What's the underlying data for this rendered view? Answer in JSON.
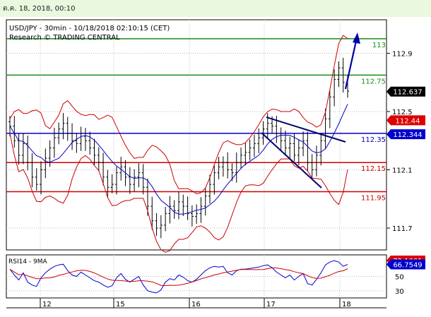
{
  "header": {
    "date_time": "ต.ค. 18, 2018, 00:10"
  },
  "chart_info": {
    "line1": "USD/JPY - 30min - 10/18/2018 02:10:15 (CET)",
    "line2": "Research © TRADING CENTRAL"
  },
  "chart_data": [
    {
      "type": "candlestick",
      "title": "USD/JPY - 30min - 10/18/2018 02:10:15 (CET)",
      "xlabel": "",
      "ylabel": "",
      "x_ticks": [
        "12",
        "15",
        "16",
        "17",
        "18"
      ],
      "y_ticks": [
        112.9,
        112.5,
        112.1,
        111.7
      ],
      "y_tick_labels": [
        "112.9",
        "112.5",
        "112.1",
        "111.7"
      ],
      "ylim": [
        111.55,
        113.13
      ],
      "grid": true,
      "horizontal_levels": [
        {
          "label": "113",
          "value": 113.0,
          "color": "#1a8a1a"
        },
        {
          "label": "112.75",
          "value": 112.75,
          "color": "#1a8a1a"
        },
        {
          "label": "112.35",
          "value": 112.35,
          "color": "#0000cc"
        },
        {
          "label": "112.15",
          "value": 112.15,
          "color": "#cc0000"
        },
        {
          "label": "111.95",
          "value": 111.95,
          "color": "#cc0000"
        }
      ],
      "price_tags": [
        {
          "label": "112.637",
          "value": 112.637,
          "bg": "#000000",
          "fg": "#ffffff"
        },
        {
          "label": "112.44",
          "value": 112.44,
          "bg": "#dd0000",
          "fg": "#ffffff"
        },
        {
          "label": "112.344",
          "value": 112.344,
          "bg": "#0000cc",
          "fg": "#ffffff"
        }
      ],
      "close_series": [
        112.4,
        112.3,
        112.2,
        112.28,
        112.15,
        112.05,
        112.0,
        112.1,
        112.18,
        112.25,
        112.32,
        112.38,
        112.42,
        112.35,
        112.3,
        112.28,
        112.33,
        112.3,
        112.25,
        112.2,
        112.15,
        112.05,
        111.98,
        112.0,
        112.08,
        112.12,
        112.05,
        112.0,
        112.05,
        112.08,
        111.98,
        111.85,
        111.75,
        111.7,
        111.72,
        111.8,
        111.85,
        111.82,
        111.88,
        111.85,
        111.8,
        111.78,
        111.8,
        111.85,
        111.92,
        112.0,
        112.08,
        112.12,
        112.15,
        112.1,
        112.08,
        112.15,
        112.2,
        112.22,
        112.25,
        112.28,
        112.32,
        112.38,
        112.42,
        112.4,
        112.35,
        112.3,
        112.25,
        112.28,
        112.2,
        112.25,
        112.3,
        112.15,
        112.1,
        112.2,
        112.3,
        112.45,
        112.6,
        112.72,
        112.8,
        112.7,
        112.64
      ],
      "series": [
        {
          "name": "",
          "color": "#0000cc",
          "label": "moving average"
        },
        {
          "name": "",
          "color": "#cc0000",
          "label": "bollinger bands"
        }
      ]
    },
    {
      "type": "line",
      "title": "RSI14 - 9MA",
      "y_ticks": [
        50,
        30
      ],
      "y_tick_labels": [
        "50",
        "30"
      ],
      "ylim": [
        20,
        80
      ],
      "price_tags": [
        {
          "label": "72.1001",
          "value": 72.1001,
          "bg": "#dd0000",
          "fg": "#ffffff"
        },
        {
          "label": "66.7549",
          "value": 66.7549,
          "bg": "#0000cc",
          "fg": "#ffffff"
        }
      ],
      "rsi_values": [
        60,
        52,
        45,
        55,
        42,
        38,
        36,
        48,
        55,
        60,
        64,
        66,
        67,
        58,
        52,
        50,
        56,
        52,
        48,
        44,
        42,
        38,
        35,
        37,
        48,
        54,
        46,
        42,
        46,
        50,
        38,
        30,
        28,
        27,
        31,
        42,
        47,
        45,
        52,
        49,
        44,
        42,
        46,
        52,
        58,
        62,
        64,
        63,
        64,
        55,
        52,
        58,
        60,
        60,
        61,
        62,
        63,
        65,
        66,
        62,
        56,
        52,
        48,
        52,
        45,
        50,
        54,
        40,
        38,
        46,
        55,
        66,
        70,
        72,
        70,
        64,
        66.75
      ]
    }
  ]
}
